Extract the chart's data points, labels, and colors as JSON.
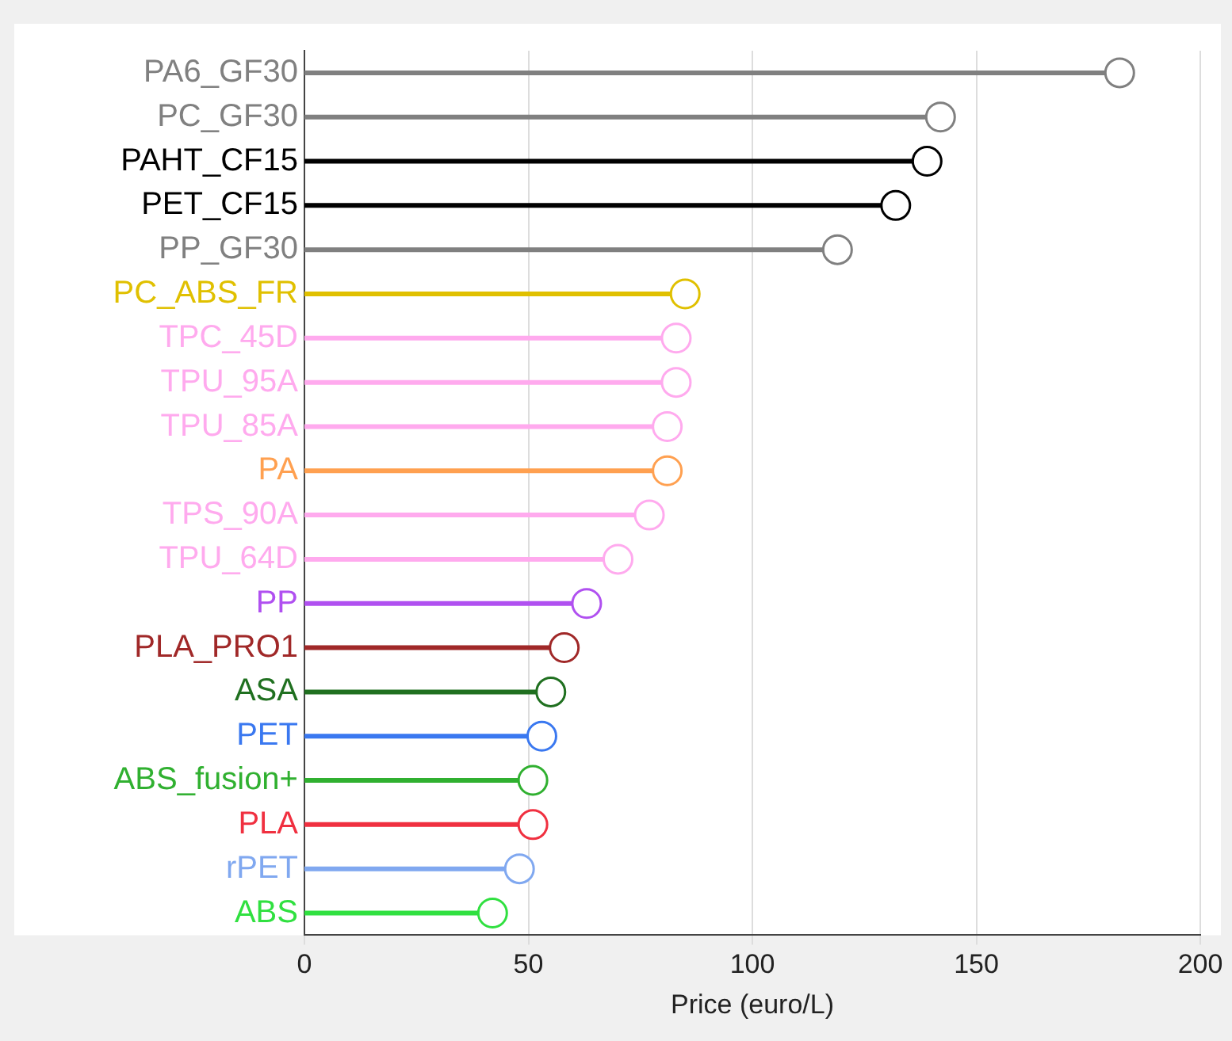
{
  "chart_data": {
    "type": "lollipop",
    "orientation": "horizontal",
    "xlabel": "Price (euro/L)",
    "categories": [
      "PA6_GF30",
      "PC_GF30",
      "PAHT_CF15",
      "PET_CF15",
      "PP_GF30",
      "PC_ABS_FR",
      "TPC_45D",
      "TPU_95A",
      "TPU_85A",
      "PA",
      "TPS_90A",
      "TPU_64D",
      "PP",
      "PLA_PRO1",
      "ASA",
      "PET",
      "ABS_fusion+",
      "PLA",
      "rPET",
      "ABS"
    ],
    "values": [
      182,
      142,
      139,
      132,
      119,
      85,
      83,
      83,
      81,
      81,
      77,
      70,
      63,
      58,
      55,
      53,
      51,
      51,
      48,
      42
    ],
    "colors": [
      "#808080",
      "#808080",
      "#000000",
      "#000000",
      "#808080",
      "#e0c000",
      "#ffaaee",
      "#ffaaee",
      "#ffaaee",
      "#ffa050",
      "#ffaaee",
      "#ffaaee",
      "#b050f0",
      "#a02828",
      "#207020",
      "#3a78f0",
      "#30b030",
      "#f03040",
      "#80a8f0",
      "#30e040"
    ],
    "xlim": [
      0,
      200
    ],
    "xticks": [
      0,
      50,
      100,
      150,
      200
    ],
    "grid": "x",
    "marker": "circle"
  }
}
